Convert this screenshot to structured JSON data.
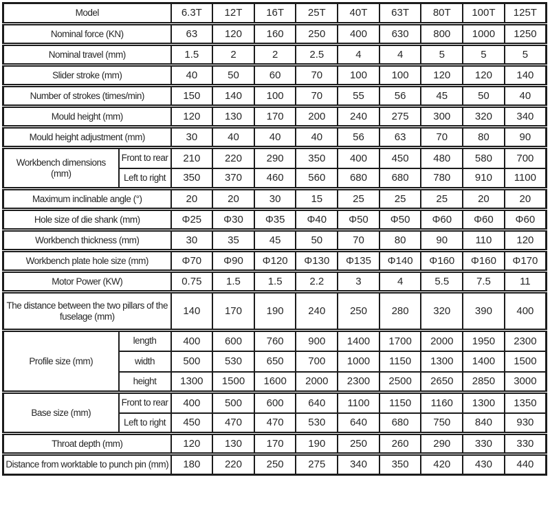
{
  "colors": {
    "background": "#ffffff",
    "border": "#1b1b1b",
    "text": "#262626"
  },
  "table": {
    "models": [
      "6.3T",
      "12T",
      "16T",
      "25T",
      "40T",
      "63T",
      "80T",
      "100T",
      "125T"
    ],
    "rows": [
      {
        "kind": "simple",
        "label": "Model",
        "values": [
          "6.3T",
          "12T",
          "16T",
          "25T",
          "40T",
          "63T",
          "80T",
          "100T",
          "125T"
        ]
      },
      {
        "kind": "simple",
        "label": "Nominal force (KN)",
        "values": [
          "63",
          "120",
          "160",
          "250",
          "400",
          "630",
          "800",
          "1000",
          "1250"
        ]
      },
      {
        "kind": "simple",
        "label": "Nominal travel (mm)",
        "values": [
          "1.5",
          "2",
          "2",
          "2.5",
          "4",
          "4",
          "5",
          "5",
          "5"
        ]
      },
      {
        "kind": "simple",
        "label": "Slider stroke (mm)",
        "values": [
          "40",
          "50",
          "60",
          "70",
          "100",
          "100",
          "120",
          "120",
          "140"
        ]
      },
      {
        "kind": "simple",
        "label": "Number of strokes (times/min)",
        "values": [
          "150",
          "140",
          "100",
          "70",
          "55",
          "56",
          "45",
          "50",
          "40"
        ]
      },
      {
        "kind": "simple",
        "label": "Mould height (mm)",
        "values": [
          "120",
          "130",
          "170",
          "200",
          "240",
          "275",
          "300",
          "320",
          "340"
        ]
      },
      {
        "kind": "simple",
        "label": "Mould height adjustment (mm)",
        "values": [
          "30",
          "40",
          "40",
          "40",
          "56",
          "63",
          "70",
          "80",
          "90"
        ]
      },
      {
        "kind": "group",
        "group": "Workbench dimensions (mm)",
        "span": 2,
        "label": "Front to rear",
        "values": [
          "210",
          "220",
          "290",
          "350",
          "400",
          "450",
          "480",
          "580",
          "700"
        ]
      },
      {
        "kind": "sub",
        "label": "Left to right",
        "values": [
          "350",
          "370",
          "460",
          "560",
          "680",
          "680",
          "780",
          "910",
          "1100"
        ]
      },
      {
        "kind": "simple",
        "label": "Maximum inclinable angle (°)",
        "values": [
          "20",
          "20",
          "30",
          "15",
          "25",
          "25",
          "25",
          "20",
          "20"
        ]
      },
      {
        "kind": "simple",
        "label": "Hole size of die shank (mm)",
        "values": [
          "Φ25",
          "Φ30",
          "Φ35",
          "Φ40",
          "Φ50",
          "Φ50",
          "Φ60",
          "Φ60",
          "Φ60"
        ]
      },
      {
        "kind": "simple",
        "label": "Workbench thickness (mm)",
        "values": [
          "30",
          "35",
          "45",
          "50",
          "70",
          "80",
          "90",
          "110",
          "120"
        ]
      },
      {
        "kind": "simple",
        "label": "Workbench plate hole size (mm)",
        "values": [
          "Φ70",
          "Φ90",
          "Φ120",
          "Φ130",
          "Φ135",
          "Φ140",
          "Φ160",
          "Φ160",
          "Φ170"
        ]
      },
      {
        "kind": "simple",
        "label": "Motor Power (KW)",
        "values": [
          "0.75",
          "1.5",
          "1.5",
          "2.2",
          "3",
          "4",
          "5.5",
          "7.5",
          "11"
        ]
      },
      {
        "kind": "simple",
        "tall": true,
        "label": "The distance between the two pillars of the fuselage (mm)",
        "values": [
          "140",
          "170",
          "190",
          "240",
          "250",
          "280",
          "320",
          "390",
          "400"
        ]
      },
      {
        "kind": "group",
        "group": "Profile size (mm)",
        "span": 3,
        "label": "length",
        "values": [
          "400",
          "600",
          "760",
          "900",
          "1400",
          "1700",
          "2000",
          "1950",
          "2300"
        ]
      },
      {
        "kind": "sub",
        "label": "width",
        "values": [
          "500",
          "530",
          "650",
          "700",
          "1000",
          "1150",
          "1300",
          "1400",
          "1500"
        ]
      },
      {
        "kind": "sub",
        "label": "height",
        "values": [
          "1300",
          "1500",
          "1600",
          "2000",
          "2300",
          "2500",
          "2650",
          "2850",
          "3000"
        ]
      },
      {
        "kind": "group",
        "group": "Base size (mm)",
        "span": 2,
        "label": "Front to rear",
        "values": [
          "400",
          "500",
          "600",
          "640",
          "1100",
          "1150",
          "1160",
          "1300",
          "1350"
        ]
      },
      {
        "kind": "sub",
        "label": "Left to right",
        "values": [
          "450",
          "470",
          "470",
          "530",
          "640",
          "680",
          "750",
          "840",
          "930"
        ]
      },
      {
        "kind": "simple",
        "label": "Throat depth (mm)",
        "values": [
          "120",
          "130",
          "170",
          "190",
          "250",
          "260",
          "290",
          "330",
          "330"
        ]
      },
      {
        "kind": "simple",
        "label": "Distance from worktable to punch pin (mm)",
        "values": [
          "180",
          "220",
          "250",
          "275",
          "340",
          "350",
          "420",
          "430",
          "440"
        ]
      }
    ]
  }
}
